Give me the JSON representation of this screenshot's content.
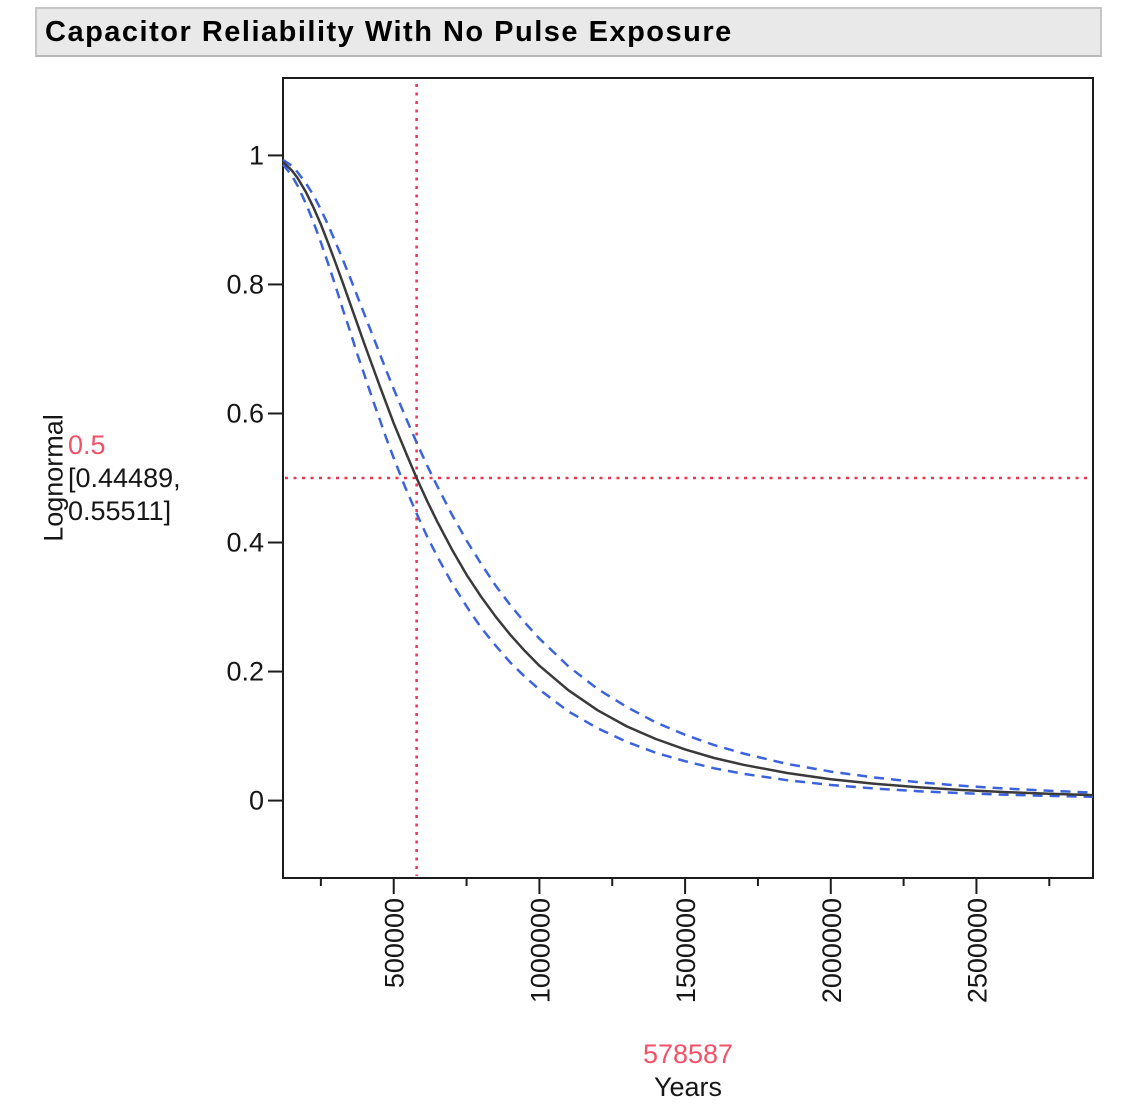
{
  "title": "Capacitor Reliability With No Pulse Exposure",
  "colors": {
    "estimate_line": "#3a3a3a",
    "confidence_line": "#3c63de",
    "crosshair_line": "#ee3350",
    "crosshair_text": "#f25168",
    "axis_text": "#161616",
    "frame": "#1c1c1c",
    "title_bg": "#e9e9e9",
    "title_border": "#c6c6c6",
    "page_bg": "#ffffff"
  },
  "y_axis": {
    "label": "Lognormal",
    "ticks": [
      1,
      0.8,
      0.6,
      0.4,
      0.2,
      0
    ],
    "tick_labels": [
      "1",
      "0.8",
      "0.6",
      "0.4",
      "0.2",
      "0"
    ],
    "min": -0.12,
    "max": 1.12
  },
  "x_axis": {
    "label": "Years",
    "major_ticks": [
      500000,
      1000000,
      1500000,
      2000000,
      2500000
    ],
    "major_tick_labels": [
      "500000",
      "1000000",
      "1500000",
      "2000000",
      "2500000"
    ],
    "minor_ticks": [
      250000,
      750000,
      1250000,
      1750000,
      2250000,
      2750000
    ],
    "min": 120000,
    "max": 2900000
  },
  "crosshair": {
    "probability_label": "0.5",
    "ci_line1": "[0.44489,",
    "ci_line2": "0.55511]",
    "time_label": "578587",
    "x_value": 578587,
    "y_value": 0.5,
    "ci_low": 0.44489,
    "ci_high": 0.55511
  },
  "chart_data": {
    "type": "line",
    "title": "Capacitor Reliability With No Pulse Exposure",
    "xlabel": "Years",
    "ylabel": "Lognormal",
    "xlim": [
      120000,
      2900000
    ],
    "ylim": [
      -0.12,
      1.12
    ],
    "grid": false,
    "legend": "none",
    "distribution": {
      "family": "lognormal",
      "median_years": 578587,
      "sigma_log": 0.676
    },
    "x": [
      120000,
      150000,
      170000,
      200000,
      225000,
      250000,
      275000,
      300000,
      325000,
      350000,
      375000,
      400000,
      425000,
      450000,
      475000,
      500000,
      540000,
      578587,
      615000,
      650000,
      700000,
      750000,
      800000,
      850000,
      900000,
      950000,
      1000000,
      1100000,
      1200000,
      1300000,
      1400000,
      1500000,
      1600000,
      1700000,
      1850000,
      2000000,
      2150000,
      2300000,
      2450000,
      2600000,
      2750000,
      2900000
    ],
    "series": [
      {
        "name": "lognormal-estimate",
        "style": "solid",
        "color": "#3a3a3a",
        "values": [
          0.99,
          0.977,
          0.965,
          0.942,
          0.919,
          0.893,
          0.864,
          0.834,
          0.803,
          0.771,
          0.739,
          0.707,
          0.676,
          0.645,
          0.615,
          0.585,
          0.541,
          0.5,
          0.464,
          0.432,
          0.389,
          0.35,
          0.316,
          0.285,
          0.257,
          0.232,
          0.209,
          0.171,
          0.14,
          0.115,
          0.0955,
          0.0793,
          0.066,
          0.0554,
          0.0427,
          0.0332,
          0.0261,
          0.0206,
          0.0164,
          0.0131,
          0.0106,
          0.0085
        ]
      },
      {
        "name": "upper-confidence",
        "style": "dashed",
        "color": "#3c63de",
        "values": [
          0.993,
          0.984,
          0.974,
          0.956,
          0.938,
          0.916,
          0.892,
          0.866,
          0.839,
          0.811,
          0.782,
          0.753,
          0.724,
          0.695,
          0.666,
          0.638,
          0.595,
          0.5551,
          0.519,
          0.487,
          0.443,
          0.403,
          0.367,
          0.333,
          0.303,
          0.276,
          0.251,
          0.208,
          0.173,
          0.145,
          0.121,
          0.102,
          0.086,
          0.073,
          0.0569,
          0.0449,
          0.0357,
          0.0285,
          0.0229,
          0.0185,
          0.0151,
          0.0123
        ]
      },
      {
        "name": "lower-confidence",
        "style": "dashed",
        "color": "#3c63de",
        "values": [
          0.986,
          0.969,
          0.953,
          0.924,
          0.896,
          0.865,
          0.832,
          0.798,
          0.762,
          0.728,
          0.692,
          0.659,
          0.625,
          0.593,
          0.561,
          0.531,
          0.485,
          0.4449,
          0.409,
          0.378,
          0.337,
          0.301,
          0.268,
          0.24,
          0.214,
          0.192,
          0.172,
          0.138,
          0.112,
          0.091,
          0.074,
          0.061,
          0.05,
          0.0415,
          0.0316,
          0.0242,
          0.0188,
          0.0146,
          0.0115,
          0.0091,
          0.0073,
          0.0058
        ]
      }
    ],
    "annotations": {
      "vline_x": 578587,
      "hline_y": 0.5
    }
  }
}
